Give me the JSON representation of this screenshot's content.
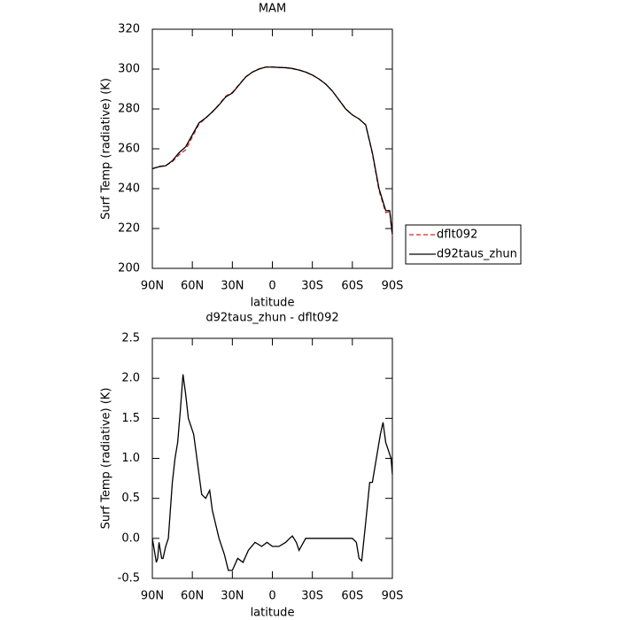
{
  "chart_data": [
    {
      "type": "line",
      "title": "MAM",
      "x_label": "latitude",
      "y_label": "Surf Temp (radiative) (K)",
      "xlim": [
        90,
        -90
      ],
      "xticks": [
        {
          "value": 90,
          "label": "90N"
        },
        {
          "value": 60,
          "label": "60N"
        },
        {
          "value": 30,
          "label": "30N"
        },
        0,
        {
          "value": -30,
          "label": "30S"
        },
        {
          "value": -60,
          "label": "60S"
        },
        {
          "value": -90,
          "label": "90S"
        }
      ],
      "ylim": [
        200,
        320
      ],
      "yticks": [
        200,
        220,
        240,
        260,
        280,
        300,
        320
      ],
      "legend": "right",
      "x": [
        90,
        85,
        80,
        75,
        70,
        65,
        60,
        55,
        50,
        45,
        40,
        35,
        30,
        25,
        20,
        15,
        10,
        5,
        0,
        -5,
        -10,
        -15,
        -20,
        -25,
        -30,
        -35,
        -40,
        -45,
        -50,
        -55,
        -60,
        -65,
        -70,
        -75,
        -80,
        -85,
        -88,
        -90
      ],
      "series": [
        {
          "name": "dflt092",
          "color": "#e02020",
          "style": "dashed",
          "values": [
            250,
            251.2,
            251.6,
            253.5,
            257,
            259.5,
            266,
            272.5,
            275.3,
            278.6,
            282.2,
            286.4,
            288.3,
            292.2,
            296.1,
            298.5,
            300.1,
            301,
            301.1,
            300.9,
            300.7,
            300.2,
            299.6,
            298.5,
            297,
            295,
            292.5,
            289,
            284.5,
            280,
            277,
            275,
            272,
            257.5,
            239,
            228,
            228.5,
            216
          ]
        },
        {
          "name": "d92taus_zhun",
          "color": "#000000",
          "style": "solid",
          "values": [
            250,
            251,
            251.5,
            254,
            258,
            261,
            267,
            273,
            275.5,
            278.5,
            282,
            286,
            288,
            292,
            296,
            298.5,
            300,
            301,
            301,
            300.8,
            300.7,
            300.3,
            299.5,
            298.5,
            297,
            295,
            292.5,
            289,
            284.5,
            280,
            277,
            275,
            272,
            258,
            240,
            229,
            229,
            217
          ]
        }
      ]
    },
    {
      "type": "line",
      "title": "d92taus_zhun - dflt092",
      "x_label": "latitude",
      "y_label": "Surf Temp (radiative) (K)",
      "xlim": [
        90,
        -90
      ],
      "xticks": [
        {
          "value": 90,
          "label": "90N"
        },
        {
          "value": 60,
          "label": "60N"
        },
        {
          "value": 30,
          "label": "30N"
        },
        0,
        {
          "value": -30,
          "label": "30S"
        },
        {
          "value": -60,
          "label": "60S"
        },
        {
          "value": -90,
          "label": "90S"
        }
      ],
      "ylim": [
        -0.5,
        2.5
      ],
      "yticks": [
        -0.5,
        {
          "value": 0,
          "label": "0.0"
        },
        0.5,
        {
          "value": 1,
          "label": "1.0"
        },
        1.5,
        {
          "value": 2,
          "label": "2.0"
        },
        2.5
      ],
      "x": [
        90,
        88,
        87,
        86,
        85,
        83,
        82,
        80,
        78,
        75,
        73,
        71,
        69,
        67,
        65,
        63,
        59,
        55,
        53,
        50,
        47,
        45,
        40,
        36,
        33,
        30,
        26,
        22,
        18,
        13,
        8,
        4,
        0,
        -5,
        -10,
        -13,
        -15,
        -18,
        -20,
        -25,
        -30,
        -40,
        -50,
        -60,
        -63,
        -65,
        -67,
        -70,
        -73,
        -75,
        -78,
        -81,
        -83,
        -85,
        -87,
        -89,
        -90
      ],
      "series": [
        {
          "color": "#000000",
          "style": "solid",
          "values": [
            0,
            -0.2,
            -0.3,
            -0.25,
            -0.05,
            -0.25,
            -0.25,
            -0.1,
            0,
            0.7,
            1.0,
            1.2,
            1.6,
            2.05,
            1.8,
            1.5,
            1.3,
            0.8,
            0.55,
            0.5,
            0.6,
            0.35,
            0,
            -0.2,
            -0.4,
            -0.4,
            -0.25,
            -0.3,
            -0.15,
            -0.05,
            -0.1,
            -0.05,
            -0.1,
            -0.1,
            -0.05,
            0,
            0.03,
            -0.05,
            -0.15,
            0,
            0,
            0,
            0,
            0,
            -0.05,
            -0.25,
            -0.28,
            0.2,
            0.7,
            0.7,
            1.0,
            1.3,
            1.45,
            1.2,
            1.1,
            1.0,
            0.8
          ]
        }
      ]
    }
  ]
}
